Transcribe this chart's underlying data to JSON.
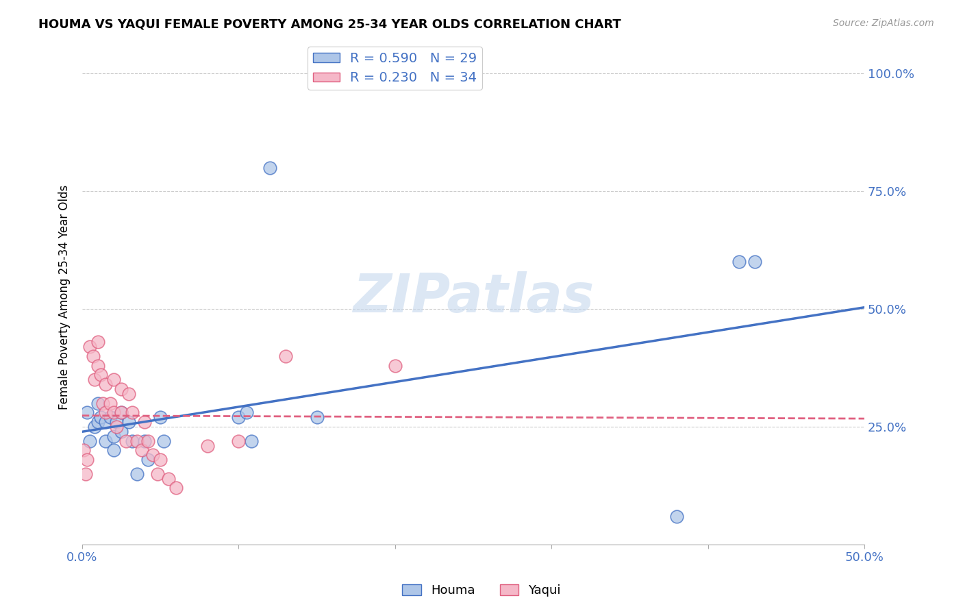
{
  "title": "HOUMA VS YAQUI FEMALE POVERTY AMONG 25-34 YEAR OLDS CORRELATION CHART",
  "source": "Source: ZipAtlas.com",
  "ylabel": "Female Poverty Among 25-34 Year Olds",
  "xlim": [
    0.0,
    0.5
  ],
  "ylim": [
    0.0,
    1.05
  ],
  "xticks": [
    0.0,
    0.1,
    0.2,
    0.3,
    0.4,
    0.5
  ],
  "ytick_positions": [
    0.25,
    0.5,
    0.75,
    1.0
  ],
  "ytick_labels": [
    "25.0%",
    "50.0%",
    "75.0%",
    "100.0%"
  ],
  "xtick_labels": [
    "0.0%",
    "",
    "",
    "",
    "",
    "50.0%"
  ],
  "houma_R": 0.59,
  "houma_N": 29,
  "yaqui_R": 0.23,
  "yaqui_N": 34,
  "houma_color": "#aec6e8",
  "yaqui_color": "#f5b8c8",
  "houma_line_color": "#4472c4",
  "yaqui_line_color": "#e06080",
  "grid_color": "#cccccc",
  "watermark_color": "#c5d8ee",
  "houma_x": [
    0.003,
    0.005,
    0.008,
    0.01,
    0.01,
    0.012,
    0.015,
    0.015,
    0.018,
    0.02,
    0.02,
    0.022,
    0.025,
    0.025,
    0.03,
    0.032,
    0.035,
    0.04,
    0.042,
    0.05,
    0.052,
    0.1,
    0.105,
    0.108,
    0.12,
    0.15,
    0.38,
    0.42,
    0.43
  ],
  "houma_y": [
    0.28,
    0.22,
    0.25,
    0.3,
    0.26,
    0.27,
    0.26,
    0.22,
    0.27,
    0.23,
    0.2,
    0.26,
    0.28,
    0.24,
    0.26,
    0.22,
    0.15,
    0.22,
    0.18,
    0.27,
    0.22,
    0.27,
    0.28,
    0.22,
    0.8,
    0.27,
    0.06,
    0.6,
    0.6
  ],
  "yaqui_x": [
    0.001,
    0.002,
    0.003,
    0.005,
    0.007,
    0.008,
    0.01,
    0.01,
    0.012,
    0.013,
    0.015,
    0.015,
    0.018,
    0.02,
    0.02,
    0.022,
    0.025,
    0.025,
    0.028,
    0.03,
    0.032,
    0.035,
    0.038,
    0.04,
    0.042,
    0.045,
    0.048,
    0.05,
    0.055,
    0.06,
    0.08,
    0.1,
    0.13,
    0.2
  ],
  "yaqui_y": [
    0.2,
    0.15,
    0.18,
    0.42,
    0.4,
    0.35,
    0.43,
    0.38,
    0.36,
    0.3,
    0.34,
    0.28,
    0.3,
    0.35,
    0.28,
    0.25,
    0.33,
    0.28,
    0.22,
    0.32,
    0.28,
    0.22,
    0.2,
    0.26,
    0.22,
    0.19,
    0.15,
    0.18,
    0.14,
    0.12,
    0.21,
    0.22,
    0.4,
    0.38
  ]
}
